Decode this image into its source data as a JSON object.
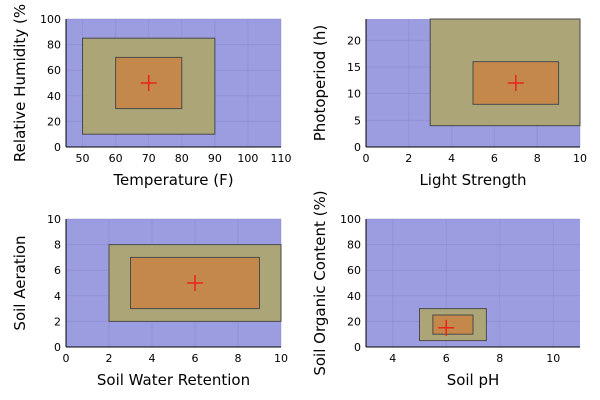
{
  "colors": {
    "background": "#9c9ce0",
    "tolerance_range": "#aca578",
    "optimal_range": "#c4894a",
    "optimum_marker": "#e8231e"
  },
  "chart_data": [
    {
      "type": "range-box",
      "xlabel": "Temperature (F)",
      "ylabel": "Relative Humidity (%",
      "xlim": [
        45,
        110
      ],
      "ylim": [
        0,
        100
      ],
      "xticks": [
        50,
        60,
        70,
        80,
        90,
        100,
        110
      ],
      "yticks": [
        0,
        20,
        40,
        60,
        80,
        100
      ],
      "grid": true,
      "tolerance": {
        "x": [
          50,
          90
        ],
        "y": [
          10,
          85
        ]
      },
      "optimal": {
        "x": [
          60,
          80
        ],
        "y": [
          30,
          70
        ]
      },
      "optimum": {
        "x": 70,
        "y": 50
      }
    },
    {
      "type": "range-box",
      "xlabel": "Light Strength",
      "ylabel": "Photoperiod (h)",
      "xlim": [
        0,
        10
      ],
      "ylim": [
        0,
        24
      ],
      "xticks": [
        0,
        2,
        4,
        6,
        8,
        10
      ],
      "yticks": [
        0,
        5,
        10,
        15,
        20
      ],
      "grid": true,
      "tolerance": {
        "x": [
          3,
          10
        ],
        "y": [
          4,
          24
        ]
      },
      "optimal": {
        "x": [
          5,
          9
        ],
        "y": [
          8,
          16
        ]
      },
      "optimum": {
        "x": 7,
        "y": 12
      }
    },
    {
      "type": "range-box",
      "xlabel": "Soil Water Retention",
      "ylabel": "Soil Aeration",
      "xlim": [
        0,
        10
      ],
      "ylim": [
        0,
        10
      ],
      "xticks": [
        0,
        2,
        4,
        6,
        8,
        10
      ],
      "yticks": [
        0,
        2,
        4,
        6,
        8,
        10
      ],
      "grid": true,
      "tolerance": {
        "x": [
          2,
          10
        ],
        "y": [
          2,
          8
        ]
      },
      "optimal": {
        "x": [
          3,
          9
        ],
        "y": [
          3,
          7
        ]
      },
      "optimum": {
        "x": 6,
        "y": 5
      }
    },
    {
      "type": "range-box",
      "xlabel": "Soil pH",
      "ylabel": "Soil Organic Content (%)",
      "xlim": [
        3,
        11
      ],
      "ylim": [
        0,
        100
      ],
      "xticks": [
        4,
        6,
        8,
        10
      ],
      "yticks": [
        0,
        20,
        40,
        60,
        80,
        100
      ],
      "grid": true,
      "tolerance": {
        "x": [
          5,
          7.5
        ],
        "y": [
          5,
          30
        ]
      },
      "optimal": {
        "x": [
          5.5,
          7
        ],
        "y": [
          10,
          25
        ]
      },
      "optimum": {
        "x": 6,
        "y": 15
      }
    }
  ]
}
